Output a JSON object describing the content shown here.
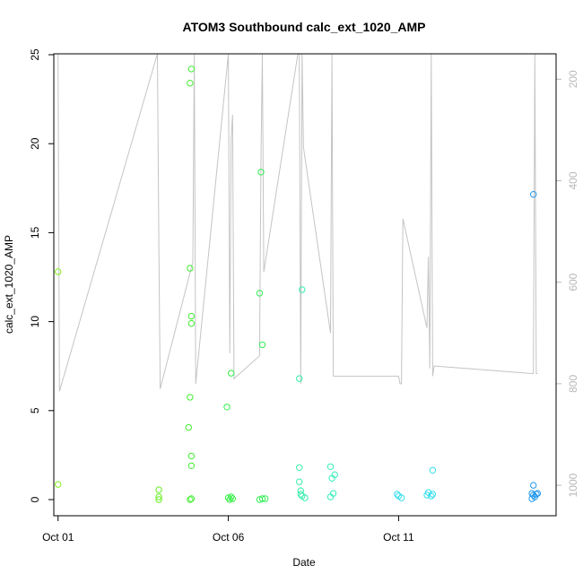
{
  "chart_data": {
    "type": "scatter",
    "title": "ATOM3 Southbound calc_ext_1020_AMP",
    "xlabel": "Date",
    "ylabel": "calc_ext_1020_AMP",
    "x_unit": "days",
    "xlim": [
      "2023-09-30T21:00",
      "2023-10-15T15:00"
    ],
    "ylim": [
      0,
      25
    ],
    "y_ticks": [
      0,
      5,
      10,
      15,
      20,
      25
    ],
    "x_ticks": [
      {
        "value": "2023-10-01T00:00",
        "label": "Oct 01"
      },
      {
        "value": "2023-10-06T00:00",
        "label": "Oct 06"
      },
      {
        "value": "2023-10-11T00:00",
        "label": "Oct 11"
      }
    ],
    "right_axis": {
      "color": "#b8b8b8",
      "reversed": true,
      "ticks": [
        200,
        400,
        600,
        800,
        1000
      ],
      "range": [
        150,
        1060
      ]
    },
    "point_color_scale": "time-ordered green to blue",
    "points": [
      {
        "x": "2023-10-01T00:00",
        "y": 12.8,
        "color": "#88ee22"
      },
      {
        "x": "2023-10-01T00:00",
        "y": 0.85,
        "color": "#88ee22"
      },
      {
        "x": "2023-10-03T23:00",
        "y": 0.55,
        "color": "#66ee22"
      },
      {
        "x": "2023-10-03T23:00",
        "y": 0.15,
        "color": "#66ee22"
      },
      {
        "x": "2023-10-03T23:00",
        "y": 0.0,
        "color": "#66ee22"
      },
      {
        "x": "2023-10-04T20:00",
        "y": 4.05,
        "color": "#44ee33"
      },
      {
        "x": "2023-10-04T21:00",
        "y": 5.75,
        "color": "#44ee33"
      },
      {
        "x": "2023-10-04T21:00",
        "y": 13.0,
        "color": "#44ee33"
      },
      {
        "x": "2023-10-04T21:00",
        "y": 23.4,
        "color": "#44ee33"
      },
      {
        "x": "2023-10-04T22:00",
        "y": 24.2,
        "color": "#44ee33"
      },
      {
        "x": "2023-10-04T22:00",
        "y": 10.3,
        "color": "#44ee33"
      },
      {
        "x": "2023-10-04T22:00",
        "y": 9.9,
        "color": "#44ee33"
      },
      {
        "x": "2023-10-04T22:00",
        "y": 2.45,
        "color": "#44ee33"
      },
      {
        "x": "2023-10-04T22:00",
        "y": 1.9,
        "color": "#44ee33"
      },
      {
        "x": "2023-10-04T21:00",
        "y": 0.0,
        "color": "#44ee33"
      },
      {
        "x": "2023-10-04T22:00",
        "y": 0.05,
        "color": "#44ee33"
      },
      {
        "x": "2023-10-05T23:00",
        "y": 5.2,
        "color": "#33ee44"
      },
      {
        "x": "2023-10-06T02:00",
        "y": 7.1,
        "color": "#33ee44"
      },
      {
        "x": "2023-10-06T00:00",
        "y": 0.1,
        "color": "#33ee44"
      },
      {
        "x": "2023-10-06T01:00",
        "y": 0.0,
        "color": "#33ee44"
      },
      {
        "x": "2023-10-06T02:00",
        "y": 0.15,
        "color": "#33ee44"
      },
      {
        "x": "2023-10-06T03:00",
        "y": 0.05,
        "color": "#33ee44"
      },
      {
        "x": "2023-10-06T22:00",
        "y": 11.6,
        "color": "#33ee55"
      },
      {
        "x": "2023-10-06T23:00",
        "y": 18.4,
        "color": "#33ee55"
      },
      {
        "x": "2023-10-07T00:00",
        "y": 8.7,
        "color": "#33ee55"
      },
      {
        "x": "2023-10-06T22:00",
        "y": 0.0,
        "color": "#33ee55"
      },
      {
        "x": "2023-10-07T00:00",
        "y": 0.05,
        "color": "#33ee55"
      },
      {
        "x": "2023-10-07T02:00",
        "y": 0.05,
        "color": "#33ee55"
      },
      {
        "x": "2023-10-08T02:00",
        "y": 6.8,
        "color": "#33eeaa"
      },
      {
        "x": "2023-10-08T04:00",
        "y": 11.8,
        "color": "#33eeaa"
      },
      {
        "x": "2023-10-08T02:00",
        "y": 1.8,
        "color": "#33eeaa"
      },
      {
        "x": "2023-10-08T02:00",
        "y": 1.0,
        "color": "#33eeaa"
      },
      {
        "x": "2023-10-08T03:00",
        "y": 0.5,
        "color": "#33eeaa"
      },
      {
        "x": "2023-10-08T03:00",
        "y": 0.3,
        "color": "#33eeaa"
      },
      {
        "x": "2023-10-08T04:00",
        "y": 0.2,
        "color": "#33eeaa"
      },
      {
        "x": "2023-10-08T06:00",
        "y": 0.1,
        "color": "#33eeaa"
      },
      {
        "x": "2023-10-09T00:00",
        "y": 1.85,
        "color": "#33eebb"
      },
      {
        "x": "2023-10-09T01:00",
        "y": 1.2,
        "color": "#33eebb"
      },
      {
        "x": "2023-10-09T03:00",
        "y": 1.4,
        "color": "#33eebb"
      },
      {
        "x": "2023-10-09T02:00",
        "y": 0.35,
        "color": "#33eebb"
      },
      {
        "x": "2023-10-09T00:00",
        "y": 0.15,
        "color": "#33eebb"
      },
      {
        "x": "2023-10-10T23:00",
        "y": 0.3,
        "color": "#33ddee"
      },
      {
        "x": "2023-10-11T00:00",
        "y": 0.2,
        "color": "#33ddee"
      },
      {
        "x": "2023-10-11T02:00",
        "y": 0.1,
        "color": "#33ddee"
      },
      {
        "x": "2023-10-11T20:00",
        "y": 0.25,
        "color": "#33ddee"
      },
      {
        "x": "2023-10-11T21:00",
        "y": 0.4,
        "color": "#33ddee"
      },
      {
        "x": "2023-10-12T00:00",
        "y": 1.65,
        "color": "#33ddee"
      },
      {
        "x": "2023-10-12T00:00",
        "y": 0.3,
        "color": "#33ddee"
      },
      {
        "x": "2023-10-11T23:00",
        "y": 0.2,
        "color": "#33ddee"
      },
      {
        "x": "2023-10-14T23:00",
        "y": 17.15,
        "color": "#2299ee"
      },
      {
        "x": "2023-10-14T23:00",
        "y": 0.8,
        "color": "#2299ee"
      },
      {
        "x": "2023-10-14T22:00",
        "y": 0.35,
        "color": "#2299ee"
      },
      {
        "x": "2023-10-14T23:00",
        "y": 0.25,
        "color": "#2299ee"
      },
      {
        "x": "2023-10-15T00:00",
        "y": 0.15,
        "color": "#2299ee"
      },
      {
        "x": "2023-10-15T01:00",
        "y": 0.3,
        "color": "#2299ee"
      },
      {
        "x": "2023-10-15T02:00",
        "y": 0.35,
        "color": "#2299ee"
      },
      {
        "x": "2023-10-14T22:00",
        "y": 0.05,
        "color": "#2299ee"
      }
    ],
    "right_line": {
      "color": "#c4c4c4",
      "x": [
        "2023-10-01T00:00",
        "2023-10-01T01:00",
        "2023-10-03T22:00",
        "2023-10-03T23:00",
        "2023-10-04T00:00",
        "2023-10-04T23:00",
        "2023-10-05T00:00",
        "2023-10-05T01:00",
        "2023-10-06T00:00",
        "2023-10-06T01:00",
        "2023-10-06T02:00",
        "2023-10-06T03:00",
        "2023-10-06T04:00",
        "2023-10-06T22:00",
        "2023-10-06T23:00",
        "2023-10-07T00:00",
        "2023-10-07T01:00",
        "2023-10-08T01:00",
        "2023-10-08T02:00",
        "2023-10-08T03:00",
        "2023-10-08T04:00",
        "2023-10-08T05:00",
        "2023-10-09T00:00",
        "2023-10-09T01:00",
        "2023-10-09T02:00",
        "2023-10-11T00:00",
        "2023-10-11T01:00",
        "2023-10-11T02:00",
        "2023-10-11T03:00",
        "2023-10-11T20:00",
        "2023-10-11T21:00",
        "2023-10-11T22:00",
        "2023-10-11T23:00",
        "2023-10-12T00:00",
        "2023-10-12T01:00",
        "2023-10-14T22:00",
        "2023-10-14T23:00",
        "2023-10-15T00:00",
        "2023-10-15T01:00",
        "2023-10-15T02:00"
      ],
      "y": [
        150,
        815,
        150,
        525,
        810,
        560,
        150,
        800,
        150,
        740,
        320,
        270,
        790,
        745,
        350,
        150,
        580,
        150,
        150,
        800,
        150,
        335,
        700,
        150,
        785,
        785,
        800,
        800,
        475,
        690,
        550,
        770,
        150,
        785,
        765,
        780,
        780,
        150,
        780,
        780
      ]
    }
  }
}
